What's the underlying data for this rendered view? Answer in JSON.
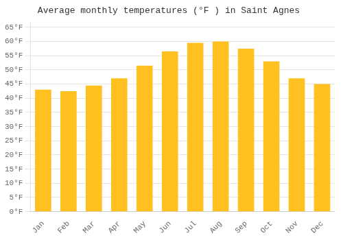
{
  "chart_data": {
    "type": "bar",
    "title": "Average monthly temperatures (°F ) in Saint Agnes",
    "categories": [
      "Jan",
      "Feb",
      "Mar",
      "Apr",
      "May",
      "Jun",
      "Jul",
      "Aug",
      "Sep",
      "Oct",
      "Nov",
      "Dec"
    ],
    "values": [
      43,
      42.5,
      44.5,
      47,
      51.5,
      56.5,
      59.5,
      60,
      57.5,
      53,
      47,
      45
    ],
    "color": "#FFC020",
    "ylim": [
      0,
      67
    ],
    "yticks": [
      {
        "value": 0,
        "label": "0°F"
      },
      {
        "value": 5,
        "label": "5°F"
      },
      {
        "value": 10,
        "label": "10°F"
      },
      {
        "value": 15,
        "label": "15°F"
      },
      {
        "value": 20,
        "label": "20°F"
      },
      {
        "value": 25,
        "label": "25°F"
      },
      {
        "value": 30,
        "label": "30°F"
      },
      {
        "value": 35,
        "label": "35°F"
      },
      {
        "value": 40,
        "label": "40°F"
      },
      {
        "value": 45,
        "label": "45°F"
      },
      {
        "value": 50,
        "label": "50°F"
      },
      {
        "value": 55,
        "label": "55°F"
      },
      {
        "value": 60,
        "label": "60°F"
      },
      {
        "value": 65,
        "label": "65°F"
      }
    ],
    "grid": true
  }
}
